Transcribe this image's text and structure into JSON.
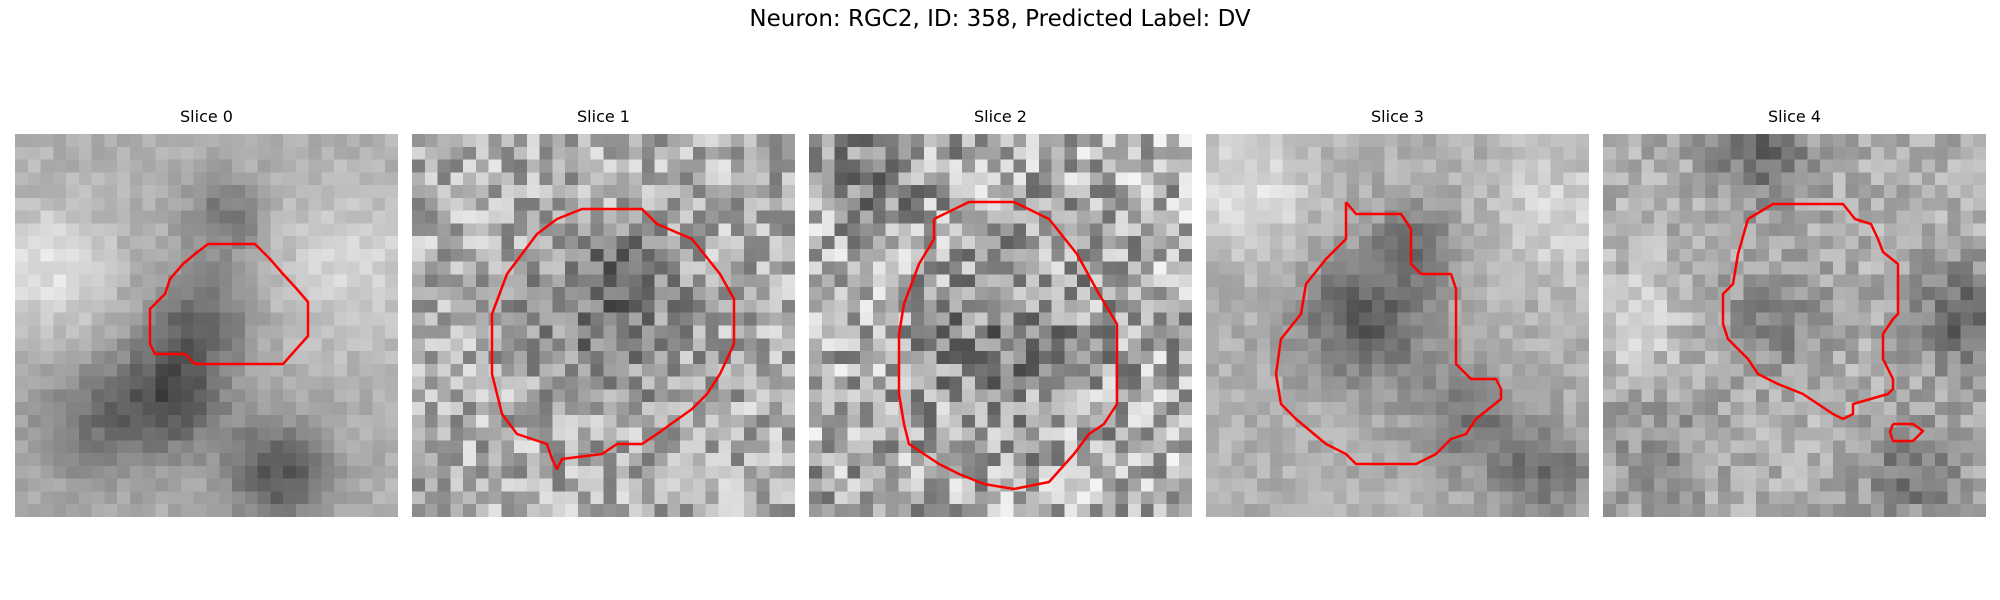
{
  "figure": {
    "title": "Neuron: RGC2, ID: 358, Predicted Label: DV"
  },
  "colors": {
    "contour": "#ff0000",
    "background": "#ffffff"
  },
  "panels": [
    {
      "title": "Slice 0",
      "image": "grayscale-microscopy-slice-smooth",
      "overlay": "red-contour"
    },
    {
      "title": "Slice 1",
      "image": "grayscale-microscopy-slice-noisy",
      "overlay": "red-contour"
    },
    {
      "title": "Slice 2",
      "image": "grayscale-microscopy-slice-noisy",
      "overlay": "red-contour"
    },
    {
      "title": "Slice 3",
      "image": "grayscale-microscopy-slice-smooth",
      "overlay": "red-contour"
    },
    {
      "title": "Slice 4",
      "image": "grayscale-microscopy-slice-smooth",
      "overlay": "red-contour"
    }
  ]
}
